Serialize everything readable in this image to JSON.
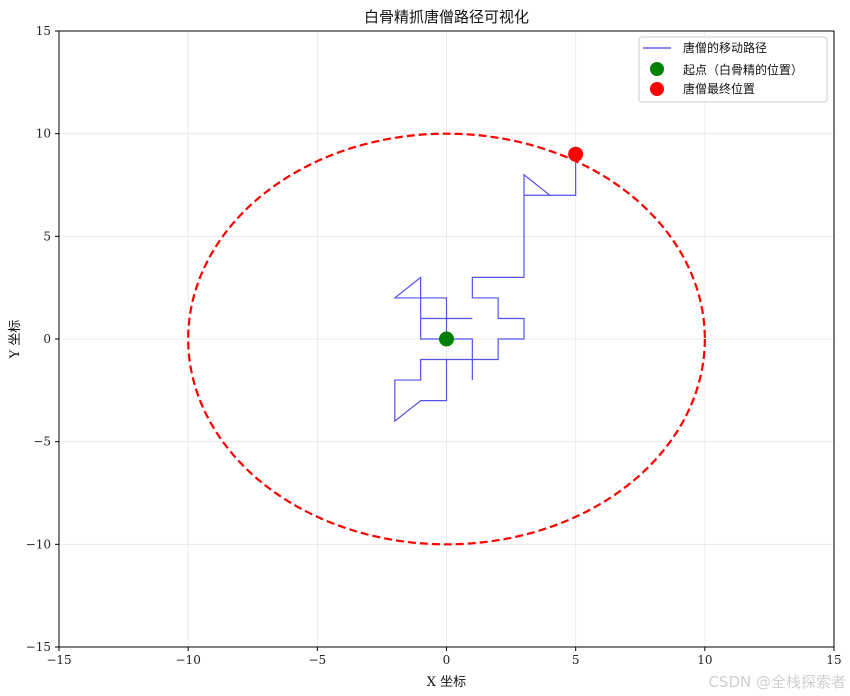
{
  "chart_data": {
    "type": "line",
    "title": "白骨精抓唐僧路径可视化",
    "xlabel": "X 坐标",
    "ylabel": "Y 坐标",
    "xlim": [
      -15,
      15
    ],
    "ylim": [
      -15,
      15
    ],
    "xticks": [
      -15,
      -10,
      -5,
      0,
      5,
      10,
      15
    ],
    "yticks": [
      -15,
      -10,
      -5,
      0,
      5,
      10,
      15
    ],
    "grid": true,
    "legend_position": "top-right",
    "boundary_circle": {
      "center": [
        0,
        0
      ],
      "radius": 10,
      "color": "#ff0000",
      "style": "dashed"
    },
    "series": [
      {
        "name": "唐僧的移动路径",
        "kind": "line",
        "color": "#4040e8",
        "x": [
          0,
          -1,
          -1,
          -1,
          -1,
          -2,
          -1,
          -1,
          -1,
          0,
          0,
          0,
          -1,
          -1,
          0,
          1,
          0,
          0,
          1,
          1,
          0,
          0,
          -1,
          -1,
          -2,
          -2,
          -2,
          -1,
          0,
          0,
          0,
          1,
          1,
          1,
          2,
          2,
          3,
          3,
          2,
          2,
          1,
          1,
          2,
          3,
          3,
          3,
          4,
          3,
          3,
          4,
          5,
          5
        ],
        "y": [
          0,
          0,
          1,
          2,
          3,
          2,
          2,
          1,
          0,
          0,
          1,
          2,
          2,
          1,
          1,
          1,
          1,
          0,
          0,
          -1,
          -1,
          -1,
          -1,
          -2,
          -2,
          -3,
          -4,
          -3,
          -3,
          -2,
          -1,
          -1,
          -2,
          -1,
          -1,
          0,
          0,
          1,
          1,
          2,
          2,
          3,
          3,
          3,
          4,
          8,
          7,
          7,
          7,
          7,
          7,
          9
        ]
      },
      {
        "name": "起点（白骨精的位置）",
        "kind": "point",
        "color": "#008000",
        "x": [
          0
        ],
        "y": [
          0
        ]
      },
      {
        "name": "唐僧最终位置",
        "kind": "point",
        "color": "#ff0000",
        "x": [
          5
        ],
        "y": [
          9
        ]
      }
    ]
  },
  "watermark": "CSDN @全栈探索者"
}
